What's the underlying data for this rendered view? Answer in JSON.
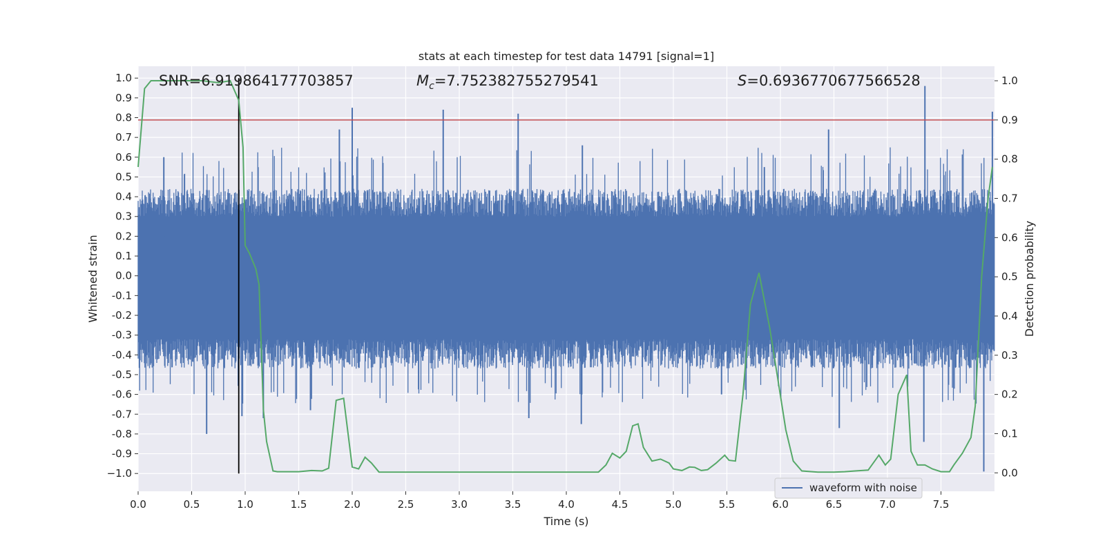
{
  "chart_data": {
    "type": "line",
    "title": "stats at each timestep for test data 14791 [signal=1]",
    "xlabel": "Time (s)",
    "ylabel_left": "Whitened strain",
    "ylabel_right": "Detection probability",
    "xlim": [
      0.0,
      8.0
    ],
    "ylim_left": [
      -1.09,
      1.06
    ],
    "ylim_right": [
      -0.047,
      1.037
    ],
    "x_ticks": [
      "0.0",
      "0.5",
      "1.0",
      "1.5",
      "2.0",
      "2.5",
      "3.0",
      "3.5",
      "4.0",
      "4.5",
      "5.0",
      "5.5",
      "6.0",
      "6.5",
      "7.0",
      "7.5"
    ],
    "y_ticks_left": [
      "1.0",
      "0.9",
      "0.8",
      "0.7",
      "0.6",
      "0.5",
      "0.4",
      "0.3",
      "0.2",
      "0.1",
      "0.0",
      "-0.1",
      "-0.2",
      "-0.3",
      "-0.4",
      "-0.5",
      "-0.6",
      "-0.7",
      "-0.8",
      "-0.9",
      "−1.0"
    ],
    "y_ticks_right": [
      "1.0",
      "0.9",
      "0.8",
      "0.7",
      "0.6",
      "0.5",
      "0.4",
      "0.3",
      "0.2",
      "0.1",
      "0.0"
    ],
    "grid": true,
    "legend": {
      "position": "lower-right",
      "entries": [
        "waveform with noise"
      ]
    },
    "annotations": {
      "snr": "SNR=6.919864177703857",
      "mc_symbol": "M",
      "mc_sub": "c",
      "mc_value": "=7.752382755279541",
      "s_symbol": "S",
      "s_value": "=0.6936770677566528"
    },
    "threshold": {
      "value": 0.9,
      "axis": "right"
    },
    "marker_time": 0.94,
    "colors": {
      "waveform": "#4c72b0",
      "probability": "#55a868",
      "threshold": "#c44e52",
      "marker": "#000000",
      "plot_bg": "#eaeaf2",
      "grid": "#ffffff"
    },
    "waveform": {
      "envelope_approx": [
        0.44,
        -0.47
      ],
      "spikes": [
        {
          "t": 0.24,
          "v": 0.6
        },
        {
          "t": 0.64,
          "v": -0.8
        },
        {
          "t": 0.97,
          "v": -0.71
        },
        {
          "t": 1.17,
          "v": -0.72
        },
        {
          "t": 1.61,
          "v": -0.68
        },
        {
          "t": 1.88,
          "v": 0.74
        },
        {
          "t": 2.0,
          "v": 0.85
        },
        {
          "t": 2.85,
          "v": 0.84
        },
        {
          "t": 3.55,
          "v": 0.82
        },
        {
          "t": 3.65,
          "v": -0.72
        },
        {
          "t": 4.15,
          "v": 0.66
        },
        {
          "t": 4.14,
          "v": -0.75
        },
        {
          "t": 5.45,
          "v": -0.6
        },
        {
          "t": 5.85,
          "v": 0.55
        },
        {
          "t": 6.45,
          "v": 0.74
        },
        {
          "t": 6.55,
          "v": -0.77
        },
        {
          "t": 7.35,
          "v": 0.96
        },
        {
          "t": 7.34,
          "v": -0.84
        },
        {
          "t": 7.9,
          "v": -0.99
        },
        {
          "t": 7.98,
          "v": 0.83
        }
      ]
    },
    "probability": {
      "x": [
        0.0,
        0.06,
        0.12,
        0.2,
        0.4,
        0.6,
        0.75,
        0.86,
        0.94,
        0.98,
        1.0,
        1.04,
        1.1,
        1.13,
        1.15,
        1.17,
        1.2,
        1.26,
        1.3,
        1.4,
        1.5,
        1.62,
        1.72,
        1.78,
        1.85,
        1.92,
        2.0,
        2.06,
        2.12,
        2.18,
        2.25,
        2.4,
        2.6,
        2.8,
        3.0,
        3.2,
        3.5,
        3.8,
        4.0,
        4.2,
        4.3,
        4.37,
        4.43,
        4.5,
        4.56,
        4.62,
        4.67,
        4.72,
        4.8,
        4.88,
        4.96,
        5.0,
        5.08,
        5.15,
        5.2,
        5.26,
        5.32,
        5.4,
        5.48,
        5.52,
        5.58,
        5.65,
        5.72,
        5.8,
        5.9,
        5.97,
        6.05,
        6.12,
        6.2,
        6.35,
        6.5,
        6.6,
        6.7,
        6.82,
        6.92,
        6.98,
        7.03,
        7.1,
        7.18,
        7.22,
        7.28,
        7.35,
        7.42,
        7.5,
        7.58,
        7.62,
        7.7,
        7.78,
        7.82,
        7.88,
        7.94,
        7.98
      ],
      "y": [
        0.78,
        0.98,
        1.0,
        1.0,
        1.0,
        1.0,
        0.995,
        1.0,
        0.95,
        0.83,
        0.58,
        0.56,
        0.52,
        0.48,
        0.32,
        0.16,
        0.08,
        0.005,
        0.003,
        0.003,
        0.003,
        0.006,
        0.005,
        0.012,
        0.185,
        0.19,
        0.015,
        0.01,
        0.04,
        0.025,
        0.002,
        0.002,
        0.002,
        0.002,
        0.002,
        0.002,
        0.002,
        0.002,
        0.002,
        0.002,
        0.002,
        0.02,
        0.05,
        0.038,
        0.055,
        0.12,
        0.125,
        0.065,
        0.03,
        0.035,
        0.025,
        0.01,
        0.006,
        0.015,
        0.014,
        0.006,
        0.008,
        0.025,
        0.045,
        0.032,
        0.03,
        0.2,
        0.43,
        0.51,
        0.37,
        0.25,
        0.11,
        0.03,
        0.005,
        0.002,
        0.002,
        0.003,
        0.005,
        0.007,
        0.045,
        0.02,
        0.035,
        0.2,
        0.25,
        0.055,
        0.02,
        0.02,
        0.01,
        0.003,
        0.003,
        0.02,
        0.05,
        0.09,
        0.17,
        0.5,
        0.7,
        0.78
      ]
    }
  }
}
